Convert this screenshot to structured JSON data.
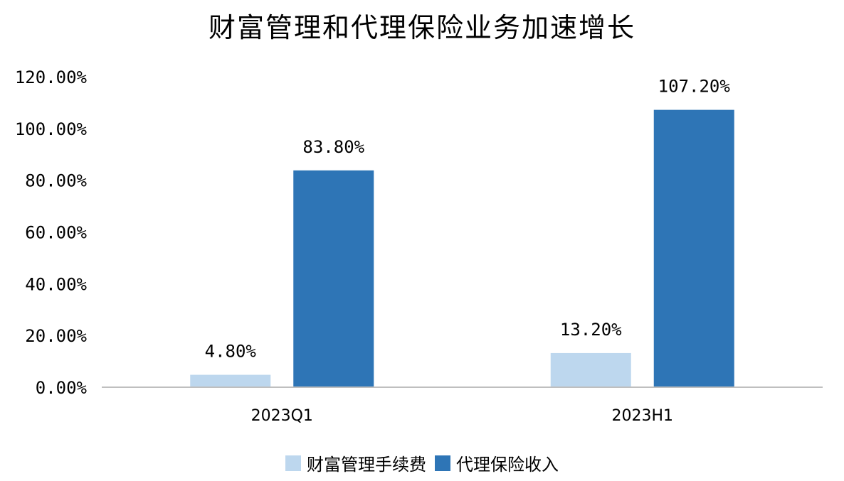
{
  "chart_data": {
    "type": "bar",
    "title": "财富管理和代理保险业务加速增长",
    "categories": [
      "2023Q1",
      "2023H1"
    ],
    "series": [
      {
        "name": "财富管理手续费",
        "values": [
          4.8,
          13.2
        ],
        "labels": [
          "4.80%",
          "13.20%"
        ],
        "color": "#bdd7ee"
      },
      {
        "name": "代理保险收入",
        "values": [
          83.8,
          107.2
        ],
        "labels": [
          "83.80%",
          "107.20%"
        ],
        "color": "#2e75b6"
      }
    ],
    "ylim": [
      0,
      120
    ],
    "yticks": [
      "0.00%",
      "20.00%",
      "40.00%",
      "60.00%",
      "80.00%",
      "100.00%",
      "120.00%"
    ],
    "ytick_values": [
      0,
      20,
      40,
      60,
      80,
      100,
      120
    ],
    "xlabel": "",
    "ylabel": "",
    "grid": false,
    "legend_position": "bottom"
  }
}
